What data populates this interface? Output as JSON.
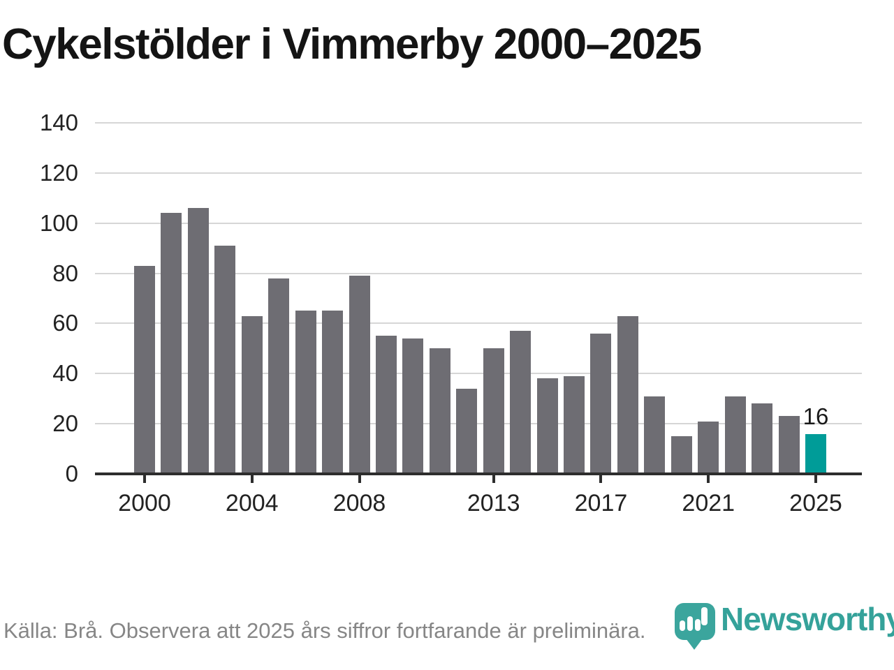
{
  "title": "Cykelstölder i Vimmerby 2000–2025",
  "chart_data": {
    "type": "bar",
    "title": "Cykelstölder i Vimmerby 2000–2025",
    "categories": [
      2000,
      2001,
      2002,
      2003,
      2004,
      2005,
      2006,
      2007,
      2008,
      2009,
      2010,
      2011,
      2012,
      2013,
      2014,
      2015,
      2016,
      2017,
      2018,
      2019,
      2020,
      2021,
      2022,
      2023,
      2024,
      2025
    ],
    "values": [
      83,
      104,
      106,
      91,
      63,
      78,
      65,
      65,
      79,
      55,
      54,
      50,
      34,
      50,
      57,
      38,
      39,
      56,
      63,
      31,
      15,
      21,
      31,
      28,
      23,
      16
    ],
    "xlabel": "",
    "ylabel": "",
    "ylim": [
      0,
      140
    ],
    "yticks": [
      0,
      20,
      40,
      60,
      80,
      100,
      120,
      140
    ],
    "xtick_years": [
      2000,
      2004,
      2008,
      2013,
      2017,
      2021,
      2025
    ],
    "grid": true,
    "legend": "none",
    "bar_color": "#6e6d73",
    "highlight_category": 2025,
    "highlight_color": "#009c98",
    "value_label": {
      "category": 2025,
      "text": "16"
    }
  },
  "footer": {
    "source_text": "Källa: Brå. Observera att 2025 års siffror fortfarande är preliminära.",
    "logo_text": "Newsworthy"
  },
  "colors": {
    "bar": "#6e6d73",
    "highlight": "#009c98",
    "grid": "#d6d6d6",
    "axis": "#2d2d2d",
    "tick_text": "#222222",
    "muted_text": "#868686",
    "brand_teal": "#3ba59d"
  }
}
